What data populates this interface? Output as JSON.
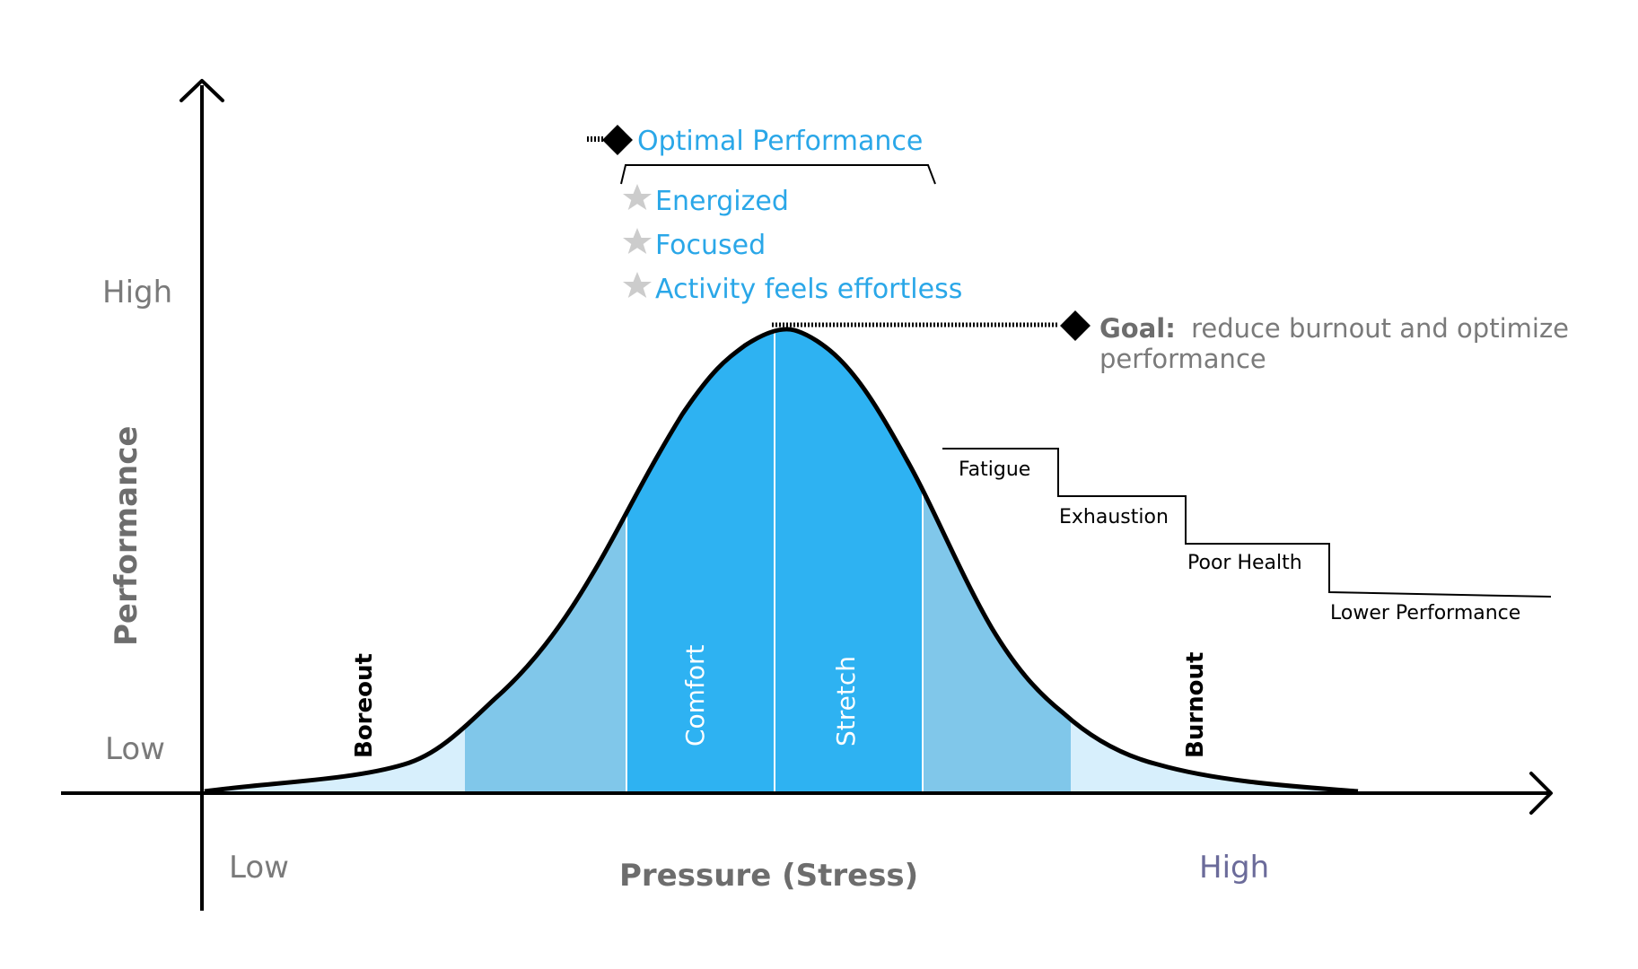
{
  "y_axis": {
    "title": "Performance",
    "high_label": "High",
    "low_label": "Low"
  },
  "x_axis": {
    "title": "Pressure (Stress)",
    "low_label": "Low",
    "high_label": "High"
  },
  "optimal": {
    "title": "Optimal Performance",
    "items": [
      "Energized",
      "Focused",
      "Activity feels effortless"
    ]
  },
  "goal": {
    "label": "Goal:",
    "text_line1": "reduce burnout and optimize",
    "text_line2": "performance"
  },
  "zones": {
    "boreout": "Boreout",
    "comfort": "Comfort",
    "stretch": "Stretch",
    "burnout": "Burnout"
  },
  "steps": [
    "Fatigue",
    "Exhaustion",
    "Poor Health",
    "Lower Performance"
  ],
  "colors": {
    "center_blue": "#2eb2f2",
    "mid_blue": "#80c7ea",
    "light_blue": "#d7effc",
    "blue_text": "#2aa7e8",
    "gray_text": "#7a7a7a",
    "high_x_label": "#6b6b9a",
    "star": "#cccccc"
  },
  "icons": [
    "diamond-icon",
    "star-icon",
    "arrow-up-icon",
    "arrow-right-icon"
  ]
}
